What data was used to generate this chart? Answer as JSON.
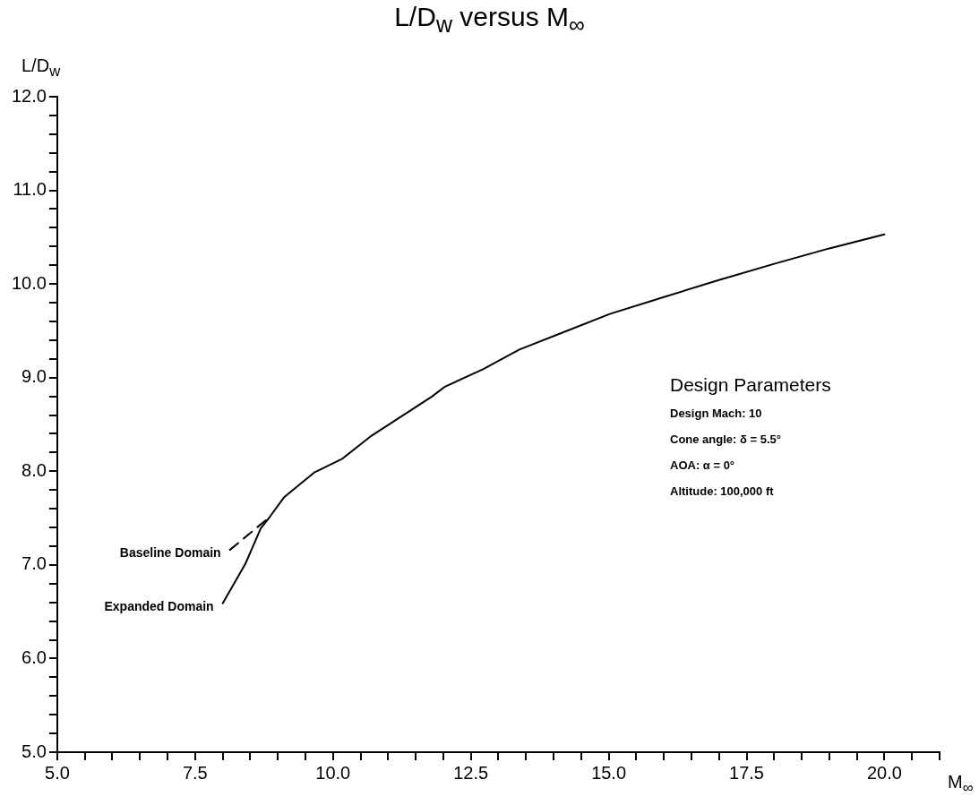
{
  "chart_data": {
    "type": "line",
    "title": "L/D$_{w}$ versus M$_{∞}$",
    "xlabel": "M$_{∞}$",
    "ylabel": "L/D$_{w}$",
    "series": [
      {
        "color": "#000000",
        "line_style": "solid",
        "x": [
          8.0,
          8.41,
          8.69,
          8.85,
          9.11,
          9.44,
          9.67,
          10.16,
          10.7,
          11.2,
          11.8,
          12.02,
          12.72,
          13.38,
          14.2,
          15.02,
          16.0,
          16.93,
          18.03,
          19.0,
          20.0
        ],
        "values": [
          6.59,
          7.01,
          7.39,
          7.51,
          7.72,
          7.88,
          7.99,
          8.13,
          8.38,
          8.57,
          8.8,
          8.9,
          9.09,
          9.3,
          9.49,
          9.68,
          9.86,
          10.03,
          10.22,
          10.38,
          10.53
        ]
      },
      {
        "color": "#000000",
        "line_style": "dashed",
        "x": [
          8.13,
          8.54,
          8.85
        ],
        "values": [
          7.16,
          7.36,
          7.51
        ]
      }
    ],
    "xlim": [
      5,
      21
    ],
    "ylim": [
      5,
      12
    ],
    "xticks": [
      {
        "value": 5,
        "label": "5.0"
      },
      {
        "value": 5.5,
        "label": null
      },
      {
        "value": 6,
        "label": null
      },
      {
        "value": 6.5,
        "label": null
      },
      {
        "value": 7,
        "label": null
      },
      {
        "value": 7.5,
        "label": "7.5"
      },
      {
        "value": 8,
        "label": null
      },
      {
        "value": 8.5,
        "label": null
      },
      {
        "value": 9,
        "label": null
      },
      {
        "value": 9.5,
        "label": null
      },
      {
        "value": 10,
        "label": "10.0"
      },
      {
        "value": 10.5,
        "label": null
      },
      {
        "value": 11,
        "label": null
      },
      {
        "value": 11.5,
        "label": null
      },
      {
        "value": 12,
        "label": null
      },
      {
        "value": 12.5,
        "label": "12.5"
      },
      {
        "value": 13,
        "label": null
      },
      {
        "value": 13.5,
        "label": null
      },
      {
        "value": 14,
        "label": null
      },
      {
        "value": 14.5,
        "label": null
      },
      {
        "value": 15,
        "label": "15.0"
      },
      {
        "value": 15.5,
        "label": null
      },
      {
        "value": 16,
        "label": null
      },
      {
        "value": 16.5,
        "label": null
      },
      {
        "value": 17,
        "label": null
      },
      {
        "value": 17.5,
        "label": "17.5"
      },
      {
        "value": 18,
        "label": null
      },
      {
        "value": 18.5,
        "label": null
      },
      {
        "value": 19,
        "label": null
      },
      {
        "value": 19.5,
        "label": null
      },
      {
        "value": 20,
        "label": "20.0"
      },
      {
        "value": 20.5,
        "label": null
      },
      {
        "value": 21,
        "label": null
      }
    ],
    "yticks": [
      {
        "value": 5,
        "label": "5.0"
      },
      {
        "value": 5.2,
        "label": null
      },
      {
        "value": 5.4,
        "label": null
      },
      {
        "value": 5.6,
        "label": null
      },
      {
        "value": 5.8,
        "label": null
      },
      {
        "value": 6,
        "label": "6.0"
      },
      {
        "value": 6.2,
        "label": null
      },
      {
        "value": 6.4,
        "label": null
      },
      {
        "value": 6.6,
        "label": null
      },
      {
        "value": 6.8,
        "label": null
      },
      {
        "value": 7,
        "label": "7.0"
      },
      {
        "value": 7.2,
        "label": null
      },
      {
        "value": 7.4,
        "label": null
      },
      {
        "value": 7.6,
        "label": null
      },
      {
        "value": 7.8,
        "label": null
      },
      {
        "value": 8,
        "label": "8.0"
      },
      {
        "value": 8.2,
        "label": null
      },
      {
        "value": 8.4,
        "label": null
      },
      {
        "value": 8.6,
        "label": null
      },
      {
        "value": 8.8,
        "label": null
      },
      {
        "value": 9,
        "label": "9.0"
      },
      {
        "value": 9.2,
        "label": null
      },
      {
        "value": 9.4,
        "label": null
      },
      {
        "value": 9.6,
        "label": null
      },
      {
        "value": 9.8,
        "label": null
      },
      {
        "value": 10,
        "label": "10.0"
      },
      {
        "value": 10.2,
        "label": null
      },
      {
        "value": 10.4,
        "label": null
      },
      {
        "value": 10.6,
        "label": null
      },
      {
        "value": 10.8,
        "label": null
      },
      {
        "value": 11,
        "label": "11.0"
      },
      {
        "value": 11.2,
        "label": null
      },
      {
        "value": 11.4,
        "label": null
      },
      {
        "value": 11.6,
        "label": null
      },
      {
        "value": 11.8,
        "label": null
      },
      {
        "value": 12,
        "label": "12.0"
      }
    ],
    "annotations": [
      {
        "text": "Baseline Domain",
        "x": 8.13,
        "y": 7.16
      },
      {
        "text": "Expanded Domain",
        "x": 8.0,
        "y": 6.59
      },
      "Design Parameters",
      "Design Mach:  10",
      "Cone angle: δ = 5.5°",
      "AOA:  α = 0°",
      "Altitude:  100,000 ft"
    ],
    "grid": false,
    "legend": false,
    "marker": "none"
  }
}
